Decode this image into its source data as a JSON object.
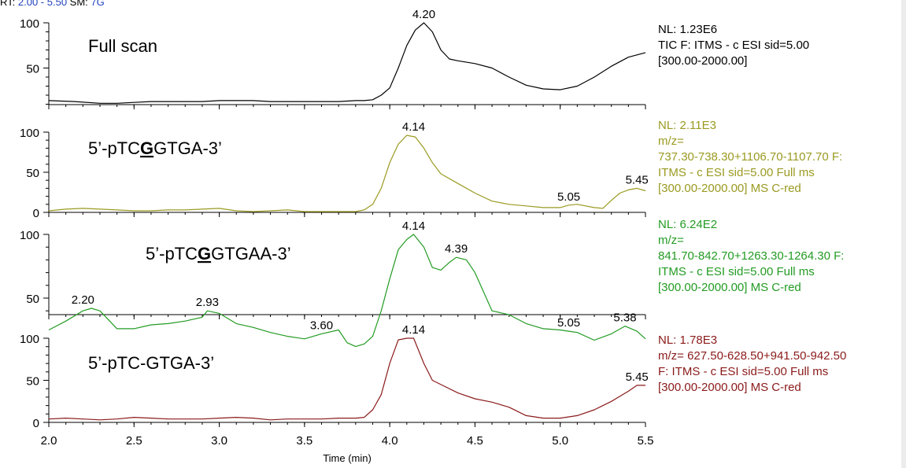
{
  "header": {
    "rt_label": "RT:",
    "rt_range": "2.00 - 5.50",
    "sm_label": "SM:",
    "sm_value": "7G"
  },
  "x_axis": {
    "label": "Time (min)",
    "range": [
      2.0,
      5.5
    ],
    "ticks": [
      2.0,
      2.5,
      3.0,
      3.5,
      4.0,
      4.5,
      5.0,
      5.5
    ],
    "tick_labels": [
      "2.0",
      "2.5",
      "3.0",
      "3.5",
      "4.0",
      "4.5",
      "5.0",
      "5.5"
    ]
  },
  "chart_data": [
    {
      "type": "line",
      "title_text": "Full scan",
      "color": "#000000",
      "ylim": [
        0,
        100
      ],
      "y_ticks": [
        50,
        100
      ],
      "x": [
        2.0,
        2.15,
        2.3,
        2.4,
        2.5,
        2.6,
        2.7,
        2.8,
        2.9,
        3.0,
        3.1,
        3.2,
        3.3,
        3.4,
        3.5,
        3.6,
        3.7,
        3.8,
        3.85,
        3.9,
        3.95,
        4.0,
        4.05,
        4.1,
        4.15,
        4.2,
        4.25,
        4.3,
        4.35,
        4.4,
        4.5,
        4.6,
        4.7,
        4.8,
        4.9,
        5.0,
        5.1,
        5.2,
        5.3,
        5.4,
        5.5
      ],
      "y": [
        14,
        13,
        11,
        11,
        12,
        13,
        13,
        13,
        13,
        14,
        14,
        14,
        13,
        13,
        13,
        13,
        13,
        14,
        14,
        15,
        20,
        28,
        50,
        75,
        92,
        100,
        90,
        70,
        60,
        58,
        55,
        50,
        40,
        31,
        27,
        26,
        30,
        40,
        52,
        62,
        67
      ],
      "peak_labels": [
        {
          "x": 4.2,
          "y": 100,
          "text": "4.20"
        }
      ],
      "info": [
        "NL: 1.23E6",
        "TIC F: ITMS - c ESI sid=5.00",
        "[300.00-2000.00]"
      ]
    },
    {
      "type": "line",
      "title_text": "5’-pTC",
      "title_bold": "G",
      "title_rest": "GTGA-3’",
      "color": "#9a9a22",
      "ylim": [
        0,
        100
      ],
      "y_ticks": [
        0,
        50,
        100
      ],
      "x": [
        2.0,
        2.1,
        2.2,
        2.3,
        2.4,
        2.5,
        2.6,
        2.7,
        2.8,
        2.9,
        3.0,
        3.1,
        3.2,
        3.3,
        3.4,
        3.5,
        3.6,
        3.7,
        3.8,
        3.85,
        3.9,
        3.95,
        4.0,
        4.05,
        4.1,
        4.15,
        4.2,
        4.25,
        4.3,
        4.4,
        4.5,
        4.6,
        4.7,
        4.8,
        4.9,
        5.0,
        5.05,
        5.1,
        5.2,
        5.25,
        5.3,
        5.35,
        5.4,
        5.45,
        5.5
      ],
      "y": [
        2,
        4,
        5,
        4,
        3,
        2,
        2,
        3,
        3,
        4,
        5,
        2,
        1,
        2,
        3,
        1,
        1,
        1,
        1,
        3,
        10,
        30,
        62,
        85,
        96,
        94,
        80,
        62,
        48,
        36,
        24,
        14,
        10,
        8,
        6,
        6,
        9,
        10,
        6,
        5,
        15,
        24,
        28,
        30,
        27
      ],
      "peak_labels": [
        {
          "x": 4.14,
          "y": 96,
          "text": "4.14"
        },
        {
          "x": 5.05,
          "y": 9,
          "text": "5.05"
        },
        {
          "x": 5.45,
          "y": 30,
          "text": "5.45"
        }
      ],
      "info": [
        "NL: 2.11E3",
        "m/z=",
        "737.30-738.30+1106.70-1107.70 F:",
        "ITMS - c ESI sid=5.00  Full ms",
        "[300.00-2000.00]  MS C-red"
      ]
    },
    {
      "type": "line",
      "title_text": "5’-pTC",
      "title_bold": "G",
      "title_rest": "GTGAA-3’",
      "color": "#239b23",
      "ylim": [
        0,
        100
      ],
      "y_ticks": [
        50,
        100
      ],
      "x": [
        2.0,
        2.1,
        2.2,
        2.25,
        2.3,
        2.4,
        2.5,
        2.6,
        2.7,
        2.8,
        2.9,
        2.93,
        3.0,
        3.1,
        3.2,
        3.3,
        3.4,
        3.5,
        3.6,
        3.7,
        3.75,
        3.8,
        3.85,
        3.9,
        3.95,
        4.0,
        4.05,
        4.1,
        4.14,
        4.2,
        4.25,
        4.3,
        4.35,
        4.39,
        4.45,
        4.5,
        4.6,
        4.7,
        4.8,
        4.9,
        5.0,
        5.05,
        5.1,
        5.2,
        5.3,
        5.38,
        5.45,
        5.5
      ],
      "y": [
        25,
        32,
        40,
        42,
        40,
        26,
        26,
        29,
        30,
        32,
        35,
        40,
        38,
        30,
        27,
        23,
        20,
        18,
        22,
        25,
        15,
        12,
        14,
        20,
        40,
        65,
        88,
        96,
        100,
        90,
        74,
        72,
        78,
        82,
        80,
        70,
        40,
        37,
        30,
        26,
        25,
        24,
        23,
        17,
        22,
        28,
        24,
        18
      ],
      "peak_labels": [
        {
          "x": 2.2,
          "y": 42,
          "text": "2.20"
        },
        {
          "x": 2.93,
          "y": 40,
          "text": "2.93"
        },
        {
          "x": 3.6,
          "y": 22,
          "text": "3.60"
        },
        {
          "x": 4.14,
          "y": 100,
          "text": "4.14"
        },
        {
          "x": 4.39,
          "y": 82,
          "text": "4.39"
        },
        {
          "x": 5.05,
          "y": 24,
          "text": "5.05"
        },
        {
          "x": 5.38,
          "y": 28,
          "text": "5.38"
        }
      ],
      "info": [
        "NL: 6.24E2",
        "m/z=",
        "841.70-842.70+1263.30-1264.30 F:",
        "ITMS - c ESI sid=5.00  Full ms",
        "[300.00-2000.00]  MS C-red"
      ]
    },
    {
      "type": "line",
      "title_text": "5’-pTC-GTGA-3’",
      "color": "#8b1a1a",
      "ylim": [
        0,
        100
      ],
      "y_ticks": [
        0,
        50,
        100
      ],
      "x": [
        2.0,
        2.1,
        2.2,
        2.3,
        2.4,
        2.5,
        2.6,
        2.7,
        2.8,
        2.9,
        3.0,
        3.1,
        3.2,
        3.3,
        3.4,
        3.5,
        3.6,
        3.7,
        3.8,
        3.85,
        3.9,
        3.95,
        4.0,
        4.05,
        4.1,
        4.14,
        4.2,
        4.25,
        4.3,
        4.4,
        4.5,
        4.6,
        4.7,
        4.8,
        4.9,
        5.0,
        5.1,
        5.2,
        5.3,
        5.4,
        5.45,
        5.5
      ],
      "y": [
        4,
        5,
        4,
        3,
        4,
        6,
        5,
        4,
        4,
        4,
        5,
        6,
        5,
        3,
        4,
        4,
        4,
        5,
        5,
        6,
        15,
        33,
        70,
        98,
        100,
        100,
        70,
        50,
        45,
        35,
        28,
        24,
        18,
        8,
        5,
        5,
        8,
        15,
        25,
        37,
        44,
        44
      ],
      "peak_labels": [
        {
          "x": 4.14,
          "y": 100,
          "text": "4.14"
        },
        {
          "x": 5.45,
          "y": 44,
          "text": "5.45"
        }
      ],
      "info": [
        "NL: 1.78E3",
        "m/z= 627.50-628.50+941.50-942.50",
        "F: ITMS - c ESI sid=5.00  Full ms",
        "[300.00-2000.00]  MS C-red"
      ]
    }
  ]
}
